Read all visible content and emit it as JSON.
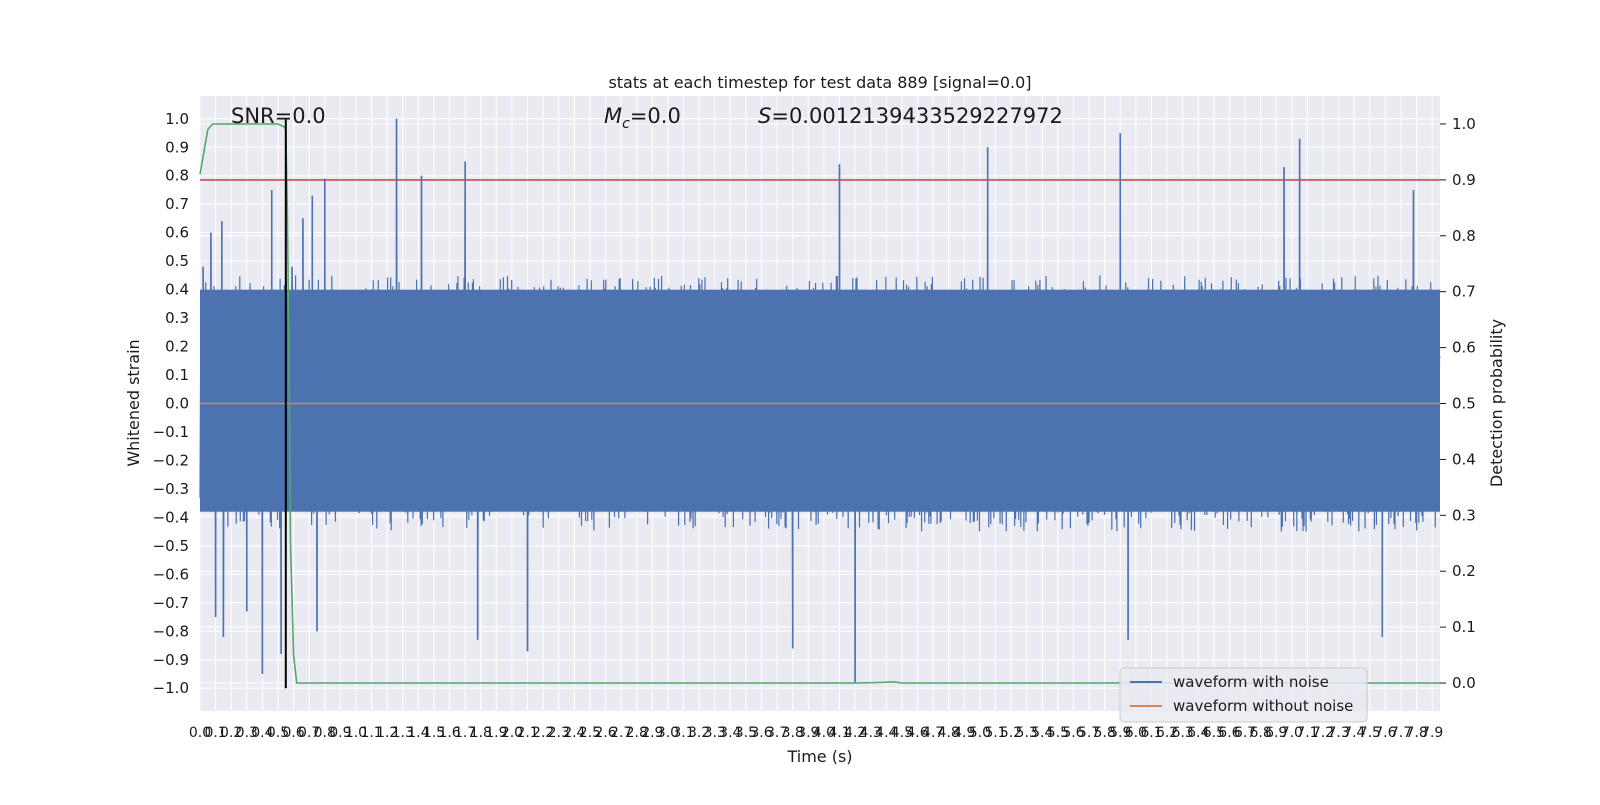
{
  "chart_data": {
    "type": "line",
    "title": "stats at each timestep for test data 889 [signal=0.0]",
    "xlabel": "Time (s)",
    "ylabel": "Whitened strain",
    "y2label": "Detection probability",
    "xlim": [
      0.0,
      7.95
    ],
    "ylim": [
      -1.08,
      1.08
    ],
    "y2lim": [
      -0.05,
      1.05
    ],
    "grid": true,
    "legend_position": "lower right",
    "x_ticks": [
      0.0,
      0.1,
      0.2,
      0.3,
      0.4,
      0.5,
      0.6,
      0.7,
      0.8,
      0.9,
      1.0,
      1.1,
      1.2,
      1.3,
      1.4,
      1.5,
      1.6,
      1.7,
      1.8,
      1.9,
      2.0,
      2.1,
      2.2,
      2.3,
      2.4,
      2.5,
      2.6,
      2.7,
      2.8,
      2.9,
      3.0,
      3.1,
      3.2,
      3.3,
      3.4,
      3.5,
      3.6,
      3.7,
      3.8,
      3.9,
      4.0,
      4.1,
      4.2,
      4.3,
      4.4,
      4.5,
      4.6,
      4.7,
      4.8,
      4.9,
      5.0,
      5.1,
      5.2,
      5.3,
      5.4,
      5.5,
      5.6,
      5.7,
      5.8,
      5.9,
      6.0,
      6.1,
      6.2,
      6.3,
      6.4,
      6.5,
      6.6,
      6.7,
      6.8,
      6.9,
      7.0,
      7.1,
      7.2,
      7.3,
      7.4,
      7.5,
      7.6,
      7.7,
      7.8,
      7.9
    ],
    "y_ticks": [
      -1.0,
      -0.9,
      -0.8,
      -0.7,
      -0.6,
      -0.5,
      -0.4,
      -0.3,
      -0.2,
      -0.1,
      0.0,
      0.1,
      0.2,
      0.3,
      0.4,
      0.5,
      0.6,
      0.7,
      0.8,
      0.9,
      1.0
    ],
    "y2_ticks": [
      0.0,
      0.1,
      0.2,
      0.3,
      0.4,
      0.5,
      0.6,
      0.7,
      0.8,
      0.9,
      1.0
    ],
    "annotations": {
      "snr": "SNR=0.0",
      "mc_symbol": "M",
      "mc_sub": "c",
      "mc_value": "=0.0",
      "s_symbol": "S",
      "s_value": "=0.0012139433529227972"
    },
    "series": [
      {
        "name": "waveform with noise",
        "axis": "left",
        "color": "#4c72b0",
        "description_values": "dense noise, typical range -0.45..0.45",
        "peaks": [
          {
            "x": 0.02,
            "y": 0.48
          },
          {
            "x": 0.07,
            "y": 0.6
          },
          {
            "x": 0.1,
            "y": -0.75
          },
          {
            "x": 0.14,
            "y": 0.64
          },
          {
            "x": 0.15,
            "y": -0.82
          },
          {
            "x": 0.3,
            "y": -0.73
          },
          {
            "x": 0.4,
            "y": -0.95
          },
          {
            "x": 0.46,
            "y": 0.75
          },
          {
            "x": 0.52,
            "y": -0.88
          },
          {
            "x": 0.59,
            "y": 0.48
          },
          {
            "x": 0.66,
            "y": 0.65
          },
          {
            "x": 0.72,
            "y": 0.73
          },
          {
            "x": 0.75,
            "y": -0.8
          },
          {
            "x": 0.8,
            "y": 0.79
          },
          {
            "x": 1.26,
            "y": 1.0
          },
          {
            "x": 1.42,
            "y": 0.8
          },
          {
            "x": 1.7,
            "y": 0.85
          },
          {
            "x": 1.78,
            "y": -0.83
          },
          {
            "x": 2.1,
            "y": -0.87
          },
          {
            "x": 3.8,
            "y": -0.86
          },
          {
            "x": 4.1,
            "y": 0.84
          },
          {
            "x": 4.2,
            "y": -0.98
          },
          {
            "x": 5.05,
            "y": 0.9
          },
          {
            "x": 5.9,
            "y": 0.95
          },
          {
            "x": 5.95,
            "y": -0.83
          },
          {
            "x": 6.95,
            "y": 0.83
          },
          {
            "x": 7.05,
            "y": 0.93
          },
          {
            "x": 7.58,
            "y": -0.82
          },
          {
            "x": 7.78,
            "y": 0.75
          }
        ]
      },
      {
        "name": "waveform without noise",
        "axis": "left",
        "color": "#dd8452",
        "x": [
          0.0,
          7.95
        ],
        "y": [
          0.0,
          0.0
        ]
      },
      {
        "axis": "right",
        "color": "#55a868",
        "x": [
          0.0,
          0.05,
          0.08,
          0.12,
          0.2,
          0.3,
          0.4,
          0.5,
          0.54,
          0.55,
          0.56,
          0.57,
          0.58,
          0.6,
          0.62,
          1.0,
          2.0,
          3.0,
          4.0,
          4.2,
          4.35,
          4.45,
          4.5,
          5.0,
          6.0,
          7.0,
          7.95
        ],
        "y": [
          0.91,
          0.99,
          1.0,
          1.0,
          1.0,
          1.0,
          1.0,
          1.0,
          0.995,
          0.99,
          0.85,
          0.6,
          0.25,
          0.05,
          0.0,
          0.0,
          0.0,
          0.0,
          0.0,
          0.0,
          0.001,
          0.002,
          0.0,
          0.0,
          0.0,
          0.0,
          0.0
        ]
      },
      {
        "axis": "right",
        "color": "#c44e52",
        "x": [
          0.0,
          7.95
        ],
        "y": [
          0.9,
          0.9
        ]
      },
      {
        "axis": "left",
        "color": "#000000",
        "x": [
          0.55,
          0.55
        ],
        "y": [
          -1.0,
          1.0
        ]
      }
    ]
  }
}
